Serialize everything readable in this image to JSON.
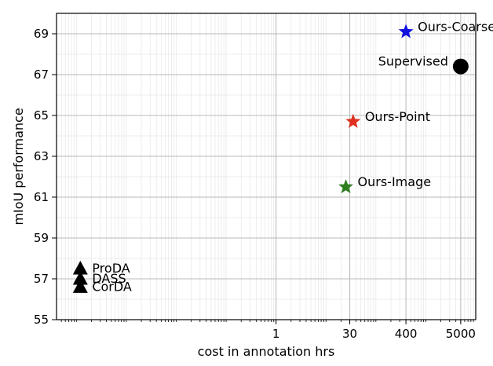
{
  "chart_data": {
    "type": "scatter",
    "xlabel": "cost in annotation hrs",
    "ylabel": "mIoU performance",
    "xscale": "log",
    "xlim": [
      4e-05,
      10000
    ],
    "ylim": [
      55,
      70
    ],
    "xticks": [
      {
        "value": 1,
        "label": "1"
      },
      {
        "value": 30,
        "label": "30"
      },
      {
        "value": 400,
        "label": "400"
      },
      {
        "value": 5000,
        "label": "5000"
      }
    ],
    "yticks": [
      55,
      57,
      59,
      61,
      63,
      65,
      67,
      69
    ],
    "grid": true,
    "points": [
      {
        "label": "Ours-Coarse",
        "x": 400,
        "y": 69.1,
        "marker": "star",
        "color": "#1010e0",
        "label_side": "right"
      },
      {
        "label": "Supervised",
        "x": 5000,
        "y": 67.4,
        "marker": "circle",
        "color": "#000000",
        "label_side": "left"
      },
      {
        "label": "Ours-Point",
        "x": 35,
        "y": 64.7,
        "marker": "star",
        "color": "#e03020",
        "label_side": "right"
      },
      {
        "label": "Ours-Image",
        "x": 25,
        "y": 61.5,
        "marker": "star",
        "color": "#2e7d1e",
        "label_side": "right"
      },
      {
        "label": "ProDA",
        "x": 0.00012,
        "y": 57.5,
        "marker": "triangle",
        "color": "#000000",
        "label_side": "right"
      },
      {
        "label": "DASS",
        "x": 0.00012,
        "y": 57.0,
        "marker": "triangle",
        "color": "#000000",
        "label_side": "right"
      },
      {
        "label": "CorDA",
        "x": 0.00012,
        "y": 56.6,
        "marker": "triangle",
        "color": "#000000",
        "label_side": "right"
      }
    ]
  }
}
